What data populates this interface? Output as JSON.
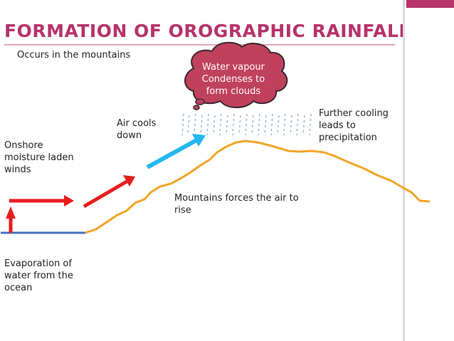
{
  "title": "FORMATION OF OROGRAPHIC RAINFALL",
  "subtitle": "Occurs in the mountains",
  "cloud_text": [
    "Water vapour",
    "Condenses to",
    "form clouds"
  ],
  "labels": {
    "air_cools": [
      "Air cools",
      "down"
    ],
    "further_cooling": [
      "Further cooling",
      "leads to",
      "precipitation"
    ],
    "onshore": [
      "Onshore",
      "moisture laden",
      "winds"
    ],
    "mountains_force": [
      "Mountains forces the air to",
      "rise"
    ],
    "evaporation": [
      "Evaporation of",
      "water from the",
      "ocean"
    ]
  },
  "colors": {
    "title": "#b5336a",
    "cloud_fill": "#c0415c",
    "mountain": "#f3a427",
    "ocean": "#4472c4",
    "warm_arrow": "#e81c1c",
    "cool_arrow": "#21b8ef",
    "rain": "#7aa7c9",
    "accent_bar": "#b7336a"
  },
  "icons": [
    "cloud-icon",
    "rain-icon",
    "up-arrow-icon",
    "right-arrow-icon",
    "cool-air-arrow-icon"
  ]
}
